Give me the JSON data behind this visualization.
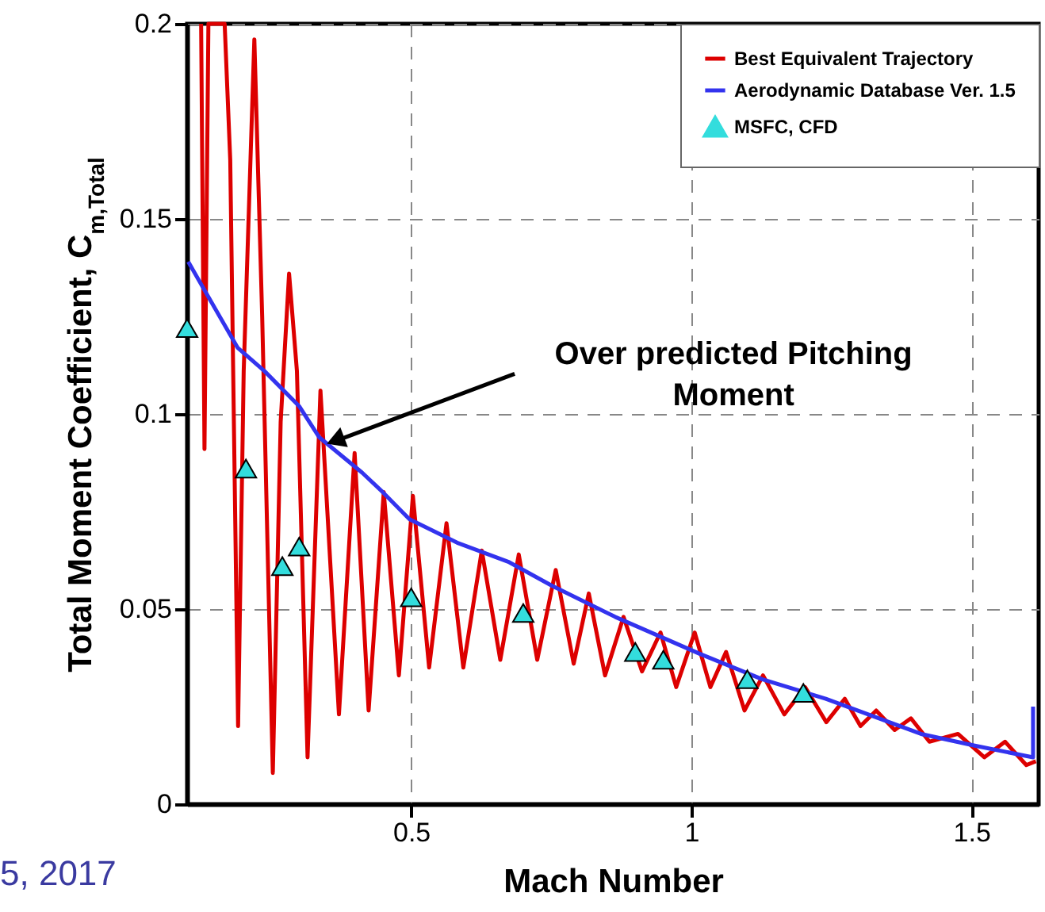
{
  "chart_data": {
    "type": "line",
    "xlabel": "Mach Number",
    "ylabel": "Total Moment Coefficient, C$_{m,Total}$",
    "xlim": [
      0.1,
      1.62
    ],
    "ylim": [
      0,
      0.2
    ],
    "xticks": [
      0.5,
      1,
      1.5
    ],
    "yticks": [
      0,
      0.05,
      0.1,
      0.15,
      0.2
    ],
    "grid": true,
    "legend": "top right",
    "series": [
      {
        "name": "Best Equivalent Trajectory",
        "color": "#dd0000",
        "x": [
          0.125,
          0.131,
          0.138,
          0.167,
          0.177,
          0.191,
          0.201,
          0.22,
          0.234,
          0.253,
          0.267,
          0.282,
          0.296,
          0.315,
          0.338,
          0.371,
          0.399,
          0.424,
          0.451,
          0.478,
          0.503,
          0.532,
          0.563,
          0.593,
          0.626,
          0.659,
          0.692,
          0.725,
          0.758,
          0.79,
          0.817,
          0.846,
          0.879,
          0.912,
          0.945,
          0.973,
          1.006,
          1.034,
          1.062,
          1.095,
          1.128,
          1.166,
          1.203,
          1.241,
          1.274,
          1.302,
          1.33,
          1.363,
          1.392,
          1.425,
          1.476,
          1.523,
          1.56,
          1.598,
          1.615
        ],
        "values": [
          0.2,
          0.091,
          0.2,
          0.2,
          0.165,
          0.02,
          0.111,
          0.196,
          0.125,
          0.008,
          0.098,
          0.136,
          0.111,
          0.012,
          0.106,
          0.023,
          0.09,
          0.024,
          0.08,
          0.033,
          0.079,
          0.035,
          0.072,
          0.035,
          0.065,
          0.037,
          0.064,
          0.037,
          0.06,
          0.036,
          0.054,
          0.033,
          0.048,
          0.034,
          0.044,
          0.03,
          0.044,
          0.03,
          0.039,
          0.024,
          0.033,
          0.023,
          0.03,
          0.021,
          0.027,
          0.02,
          0.024,
          0.019,
          0.022,
          0.016,
          0.018,
          0.012,
          0.016,
          0.01,
          0.011
        ]
      },
      {
        "name": "Aerodynamic Database Ver. 1.5",
        "color": "#3333ee",
        "x": [
          0.102,
          0.19,
          0.238,
          0.3,
          0.336,
          0.412,
          0.449,
          0.497,
          0.582,
          0.675,
          0.751,
          0.864,
          1.014,
          1.127,
          1.24,
          1.41,
          1.506,
          1.61,
          1.61
        ],
        "values": [
          0.139,
          0.117,
          0.111,
          0.102,
          0.094,
          0.085,
          0.08,
          0.073,
          0.067,
          0.062,
          0.056,
          0.048,
          0.0386,
          0.032,
          0.027,
          0.018,
          0.015,
          0.012,
          0.025
        ]
      },
      {
        "name": "MSFC, CFD",
        "color": "#33dddd",
        "type": "scatter",
        "marker": "triangle",
        "x": [
          0.1,
          0.205,
          0.27,
          0.3,
          0.5,
          0.7,
          0.9,
          0.95,
          1.1,
          1.2
        ],
        "values": [
          0.122,
          0.086,
          0.061,
          0.066,
          0.053,
          0.049,
          0.039,
          0.037,
          0.032,
          0.0285
        ]
      }
    ],
    "annotations": [
      {
        "text": "Over predicted Pitching\nMoment",
        "x": 0.345,
        "y": 0.092
      },
      "5, 2017"
    ]
  }
}
